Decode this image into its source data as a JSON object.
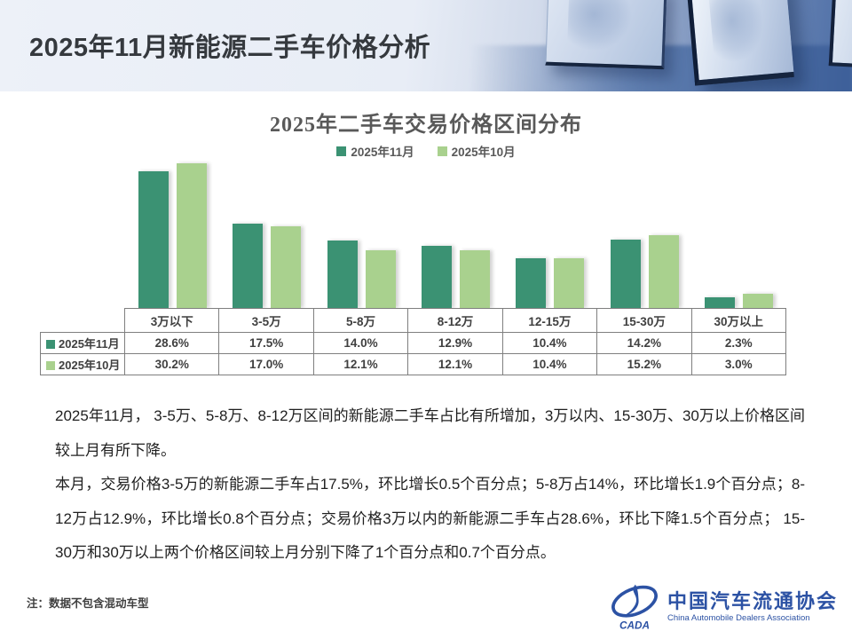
{
  "header": {
    "title": "2025年11月新能源二手车价格分析"
  },
  "chart_data": {
    "type": "bar",
    "title": "2025年二手车交易价格区间分布",
    "categories": [
      "3万以下",
      "3-5万",
      "5-8万",
      "8-12万",
      "12-15万",
      "15-30万",
      "30万以上"
    ],
    "series": [
      {
        "name": "2025年11月",
        "color": "#3b9273",
        "values": [
          28.6,
          17.5,
          14.0,
          12.9,
          10.4,
          14.2,
          2.3
        ]
      },
      {
        "name": "2025年10月",
        "color": "#a9d18e",
        "values": [
          30.2,
          17.0,
          12.1,
          12.1,
          10.4,
          15.2,
          3.0
        ]
      }
    ],
    "unit": "%",
    "value_format": "one-decimal-percent",
    "legend_position": "top-center",
    "grid": false,
    "axes_hidden": true,
    "data_table_below": true,
    "ylim": [
      0,
      32
    ]
  },
  "body": {
    "paragraphs": [
      "2025年11月，  3-5万、5-8万、8-12万区间的新能源二手车占比有所增加，3万以内、15-30万、30万以上价格区间较上月有所下降。",
      "本月，交易价格3-5万的新能源二手车占17.5%，环比增长0.5个百分点；5-8万占14%，环比增长1.9个百分点；8-12万占12.9%，环比增长0.8个百分点；交易价格3万以内的新能源二手车占28.6%，环比下降1.5个百分点；  15-30万和30万以上两个价格区间较上月分别下降了1个百分点和0.7个百分点。"
    ]
  },
  "footer": {
    "note": "注：数据不包含混动车型",
    "logo": {
      "acronym": "CADA",
      "name_cn": "中国汽车流通协会",
      "name_en": "China Automobile Dealers Association",
      "brand_color": "#2c52a4"
    }
  }
}
